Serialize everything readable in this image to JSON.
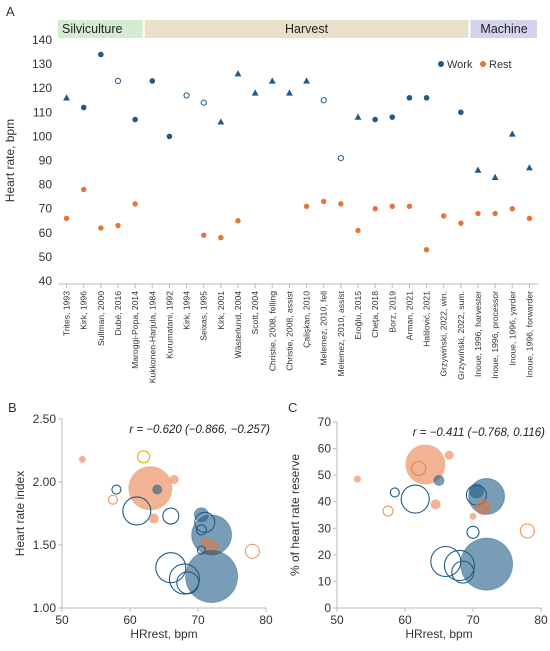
{
  "panels": {
    "a": {
      "letter": "A"
    },
    "b": {
      "letter": "B"
    },
    "c": {
      "letter": "C"
    }
  },
  "chart_data": [
    {
      "type": "scatter",
      "panel": "A",
      "ylabel": "Heart rate, bpm",
      "ylim": [
        40,
        140
      ],
      "yticks": [
        40,
        50,
        60,
        70,
        80,
        90,
        100,
        110,
        120,
        130,
        140
      ],
      "groups": [
        {
          "label": "Silviculture",
          "color": "#d4ecd2",
          "start": 0,
          "end": 4
        },
        {
          "label": "Harvest",
          "color": "#e8e0c8",
          "start": 5,
          "end": 23
        },
        {
          "label": "Machine",
          "color": "#d3d3ee",
          "start": 24,
          "end": 27
        }
      ],
      "legend": {
        "placement": "top-right",
        "items": [
          {
            "name": "Work",
            "color": "#1f5b86"
          },
          {
            "name": "Rest",
            "color": "#e5743a"
          }
        ]
      },
      "categories": [
        "Trites, 1993",
        "Kirk, 1996",
        "Sullman, 2000",
        "Dubé, 2016",
        "Maroggi-Popa, 2014",
        "Kukkonen-Harjula, 1984",
        "Kurumatani, 1992",
        "Kirk, 1994",
        "Seixas, 1995",
        "Kirk, 2001",
        "Wästerlund, 2004",
        "Scott, 2004",
        "Christie, 2008, felling",
        "Christie, 2008, assist",
        "Çalişkan, 2010",
        "Melemez, 2010, fell",
        "Melemez, 2010, assist",
        "Eroğlu, 2015",
        "Cheța, 2018",
        "Borz, 2019",
        "Arman, 2021",
        "Halilović, 2021",
        "Grzywiński, 2022, win.",
        "Grzywiński, 2022, sum.",
        "Inoue, 1996, harvester",
        "Inoue, 1996, processor",
        "Inoue, 1996, yarder",
        "Inoue, 1996, forwarder"
      ],
      "series": [
        {
          "name": "Work",
          "values": [
            116,
            112,
            134,
            123,
            107,
            123,
            100,
            117,
            114,
            106,
            126,
            118,
            123,
            118,
            123,
            115,
            91,
            108,
            107,
            108,
            116,
            116,
            null,
            110,
            86,
            83,
            101,
            87
          ],
          "markers": [
            "triangle",
            "circle",
            "circle",
            "open-circle",
            "circle",
            "circle",
            "circle",
            "open-circle",
            "open-circle",
            "triangle",
            "triangle",
            "triangle",
            "triangle",
            "triangle",
            "triangle",
            "open-circle",
            "open-circle",
            "triangle",
            "circle",
            "circle",
            "circle",
            "circle",
            "none",
            "circle",
            "triangle",
            "triangle",
            "triangle",
            "triangle"
          ]
        },
        {
          "name": "Rest",
          "values": [
            66,
            78,
            62,
            63,
            72,
            null,
            null,
            null,
            59,
            58,
            65,
            null,
            null,
            null,
            71,
            73,
            72,
            61,
            70,
            71,
            71,
            53,
            67,
            64,
            68,
            68,
            70,
            66
          ]
        }
      ]
    },
    {
      "type": "scatter",
      "panel": "B",
      "xlabel": "HRrest, bpm",
      "ylabel": "Heart rate index",
      "xlim": [
        50,
        80
      ],
      "ylim": [
        1.0,
        2.5
      ],
      "xticks": [
        "50",
        "60",
        "70",
        "80"
      ],
      "yticks": [
        "1.00",
        "1.50",
        "2.00",
        "2.50"
      ],
      "annotation": "r = −0.620 (−0.866, −0.257)",
      "points": [
        {
          "x": 53,
          "y": 2.18,
          "r": 3.5,
          "style": "fill-orange"
        },
        {
          "x": 62,
          "y": 2.2,
          "r": 6,
          "style": "open-yellow"
        },
        {
          "x": 58,
          "y": 1.94,
          "r": 4.5,
          "style": "open-blue"
        },
        {
          "x": 63,
          "y": 1.95,
          "r": 22,
          "style": "fill-orange"
        },
        {
          "x": 64,
          "y": 1.94,
          "r": 4.5,
          "style": "fill-blue"
        },
        {
          "x": 66.5,
          "y": 2.02,
          "r": 4.5,
          "style": "fill-orange"
        },
        {
          "x": 57.5,
          "y": 1.86,
          "r": 4.5,
          "style": "open-orange"
        },
        {
          "x": 61,
          "y": 1.77,
          "r": 14,
          "style": "open-blue"
        },
        {
          "x": 63.5,
          "y": 1.71,
          "r": 5,
          "style": "fill-orange"
        },
        {
          "x": 66,
          "y": 1.73,
          "r": 8,
          "style": "open-blue"
        },
        {
          "x": 70.5,
          "y": 1.74,
          "r": 7,
          "style": "fill-blue"
        },
        {
          "x": 71,
          "y": 1.68,
          "r": 10,
          "style": "open-blue"
        },
        {
          "x": 70.5,
          "y": 1.62,
          "r": 5,
          "style": "open-blue"
        },
        {
          "x": 72,
          "y": 1.58,
          "r": 20,
          "style": "fill-blue"
        },
        {
          "x": 71,
          "y": 1.53,
          "r": 4,
          "style": "fill-orange"
        },
        {
          "x": 72,
          "y": 1.48,
          "r": 8,
          "style": "fill-orange"
        },
        {
          "x": 70.5,
          "y": 1.46,
          "r": 4,
          "style": "open-blue"
        },
        {
          "x": 78,
          "y": 1.45,
          "r": 7,
          "style": "open-orange"
        },
        {
          "x": 66,
          "y": 1.32,
          "r": 15,
          "style": "open-blue"
        },
        {
          "x": 68,
          "y": 1.23,
          "r": 15,
          "style": "open-blue"
        },
        {
          "x": 68.5,
          "y": 1.2,
          "r": 11,
          "style": "open-blue"
        },
        {
          "x": 72,
          "y": 1.25,
          "r": 26,
          "style": "fill-blue"
        }
      ]
    },
    {
      "type": "scatter",
      "panel": "C",
      "xlabel": "HRrest, bpm",
      "ylabel": "% of heart rate reserve",
      "xlim": [
        50,
        80
      ],
      "ylim": [
        0,
        70
      ],
      "xticks": [
        "50",
        "60",
        "70",
        "80"
      ],
      "yticks": [
        "0",
        "10",
        "20",
        "30",
        "40",
        "50",
        "60",
        "70"
      ],
      "annotation": "r = −0.411 (−0.768, 0.116)",
      "points": [
        {
          "x": 53,
          "y": 48.5,
          "r": 3.5,
          "style": "fill-orange"
        },
        {
          "x": 62,
          "y": 52.5,
          "r": 7,
          "style": "open-orange"
        },
        {
          "x": 63,
          "y": 54,
          "r": 20,
          "style": "fill-orange"
        },
        {
          "x": 66.5,
          "y": 57.5,
          "r": 4.5,
          "style": "fill-orange"
        },
        {
          "x": 58.5,
          "y": 43.5,
          "r": 4.5,
          "style": "open-blue"
        },
        {
          "x": 61.5,
          "y": 41,
          "r": 14,
          "style": "open-blue"
        },
        {
          "x": 65,
          "y": 48,
          "r": 5,
          "style": "fill-blue"
        },
        {
          "x": 57.5,
          "y": 36.5,
          "r": 5,
          "style": "open-orange"
        },
        {
          "x": 64.5,
          "y": 39,
          "r": 5,
          "style": "fill-orange"
        },
        {
          "x": 70.5,
          "y": 44,
          "r": 7,
          "style": "fill-blue"
        },
        {
          "x": 70.5,
          "y": 42.5,
          "r": 10,
          "style": "open-blue"
        },
        {
          "x": 72,
          "y": 42,
          "r": 18,
          "style": "fill-blue"
        },
        {
          "x": 71.5,
          "y": 38,
          "r": 8,
          "style": "fill-orange"
        },
        {
          "x": 70,
          "y": 34.5,
          "r": 3.5,
          "style": "fill-orange"
        },
        {
          "x": 70,
          "y": 28.5,
          "r": 6,
          "style": "open-blue"
        },
        {
          "x": 78,
          "y": 29,
          "r": 7,
          "style": "open-orange"
        },
        {
          "x": 66,
          "y": 17.5,
          "r": 15,
          "style": "open-blue"
        },
        {
          "x": 68,
          "y": 16,
          "r": 15,
          "style": "open-blue"
        },
        {
          "x": 68.5,
          "y": 13.5,
          "r": 11,
          "style": "open-blue"
        },
        {
          "x": 72,
          "y": 16.5,
          "r": 26,
          "style": "fill-blue"
        }
      ]
    }
  ]
}
